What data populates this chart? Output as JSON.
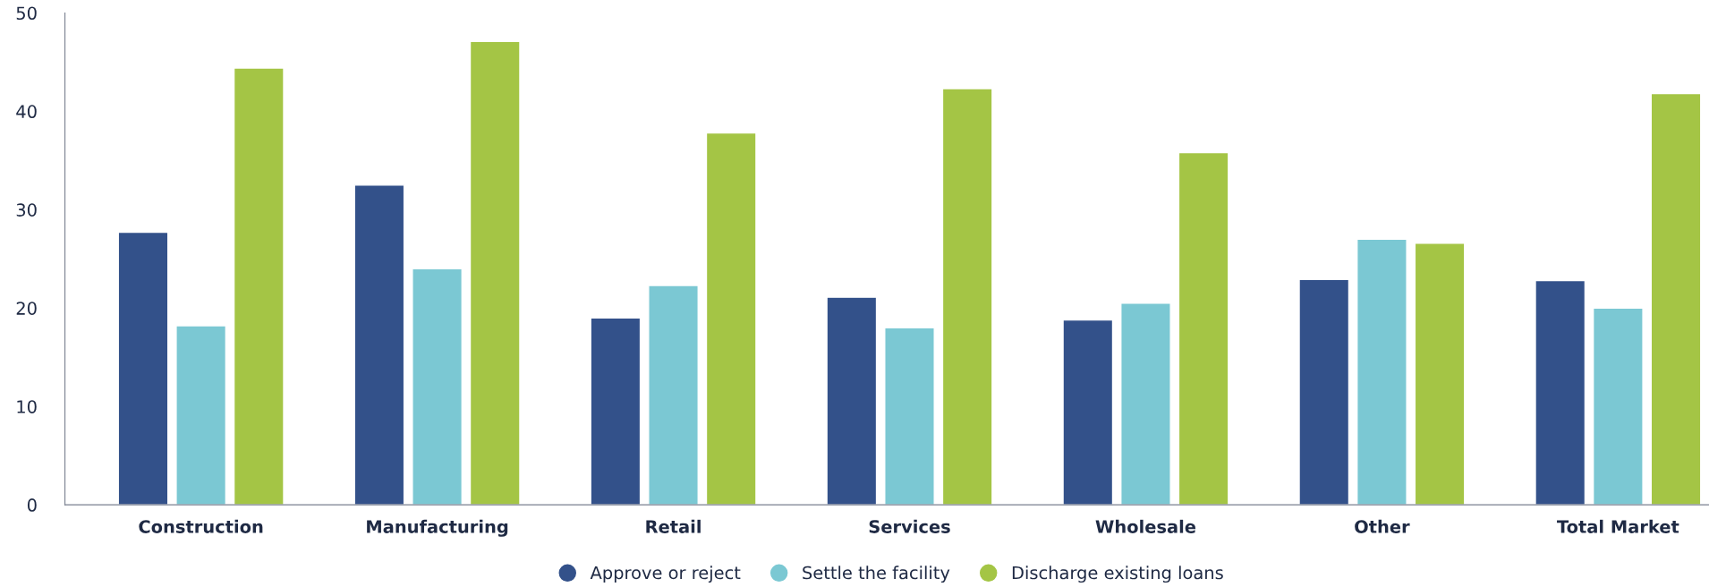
{
  "chart_data": {
    "type": "bar",
    "categories": [
      "Construction",
      "Manufacturing",
      "Retail",
      "Services",
      "Wholesale",
      "Other",
      "Total Market"
    ],
    "series": [
      {
        "name": "Approve or reject",
        "color": "#33518a",
        "values": [
          27.7,
          32.5,
          19.0,
          21.1,
          18.8,
          22.9,
          22.8
        ]
      },
      {
        "name": "Settle the facility",
        "color": "#7bc8d3",
        "values": [
          18.2,
          24.0,
          22.3,
          18.0,
          20.5,
          27.0,
          20.0
        ]
      },
      {
        "name": "Discharge existing loans",
        "color": "#a4c545",
        "values": [
          44.4,
          47.1,
          37.8,
          42.3,
          35.8,
          26.6,
          41.8
        ]
      }
    ],
    "ylim": [
      0,
      50
    ],
    "yticks": [
      0,
      10,
      20,
      30,
      40,
      50
    ],
    "grid": false,
    "legend": "bottom"
  }
}
